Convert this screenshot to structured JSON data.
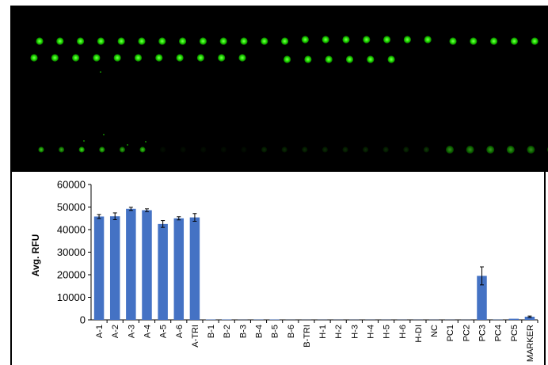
{
  "chart_data": {
    "type": "bar",
    "title": "",
    "xlabel": "",
    "ylabel": "Avg. RFU",
    "ylim": [
      0,
      60000
    ],
    "yticks": [
      "0",
      "10000",
      "20000",
      "30000",
      "40000",
      "50000",
      "60000"
    ],
    "categories": [
      "A-1",
      "A-2",
      "A-3",
      "A-4",
      "A-5",
      "A-6",
      "A-TRI",
      "B-1",
      "B-2",
      "B-3",
      "B-4",
      "B-5",
      "B-6",
      "B-TRI",
      "H-1",
      "H-2",
      "H-3",
      "H-4",
      "H-5",
      "H-6",
      "H-DI",
      "NC",
      "PC1",
      "PC2",
      "PC3",
      "PC4",
      "PC5",
      "MARKER"
    ],
    "values": [
      45800,
      45900,
      49200,
      48600,
      42500,
      45000,
      45400,
      150,
      150,
      60,
      120,
      150,
      50,
      50,
      60,
      60,
      60,
      60,
      60,
      60,
      60,
      60,
      60,
      50,
      19500,
      100,
      500,
      1400
    ],
    "errors": [
      900,
      1500,
      700,
      600,
      1500,
      700,
      1700,
      0,
      0,
      0,
      0,
      0,
      0,
      0,
      0,
      0,
      0,
      0,
      0,
      0,
      0,
      0,
      0,
      0,
      4000,
      0,
      0,
      300
    ],
    "grid": false,
    "legend": "none",
    "bar_color": "#4472c4"
  },
  "scan": {
    "background": "#000000",
    "spot_color": "#22e000",
    "rows": [
      {
        "name": "row-1",
        "spots": [
          1,
          1,
          1,
          1,
          1,
          1,
          1,
          1,
          1,
          1,
          1,
          1,
          1,
          1,
          1,
          1,
          1,
          1,
          1,
          1,
          1,
          1,
          1,
          1,
          1
        ],
        "brightness": [
          1,
          1,
          1,
          1,
          1,
          1,
          1,
          1,
          1,
          1,
          1,
          1,
          1,
          1,
          1,
          1,
          1,
          1,
          1,
          1,
          1,
          1,
          1,
          1,
          1
        ]
      },
      {
        "name": "row-2",
        "brightness": [
          1,
          1,
          1,
          1,
          1,
          1,
          1,
          1,
          1,
          1,
          1,
          0,
          1,
          1,
          1,
          1,
          1,
          1
        ]
      },
      {
        "name": "row-3",
        "brightness": [
          0.7,
          0.6,
          0.8,
          0.7,
          0.6,
          0.7,
          0.05,
          0.05,
          0.05,
          0.05,
          0.05,
          0.15,
          0.15,
          0.15,
          0.15,
          0.15,
          0.15,
          0.15,
          0.15,
          0.2,
          0.5,
          0.5,
          0.55,
          0.55,
          0.5,
          0.5
        ]
      }
    ]
  }
}
